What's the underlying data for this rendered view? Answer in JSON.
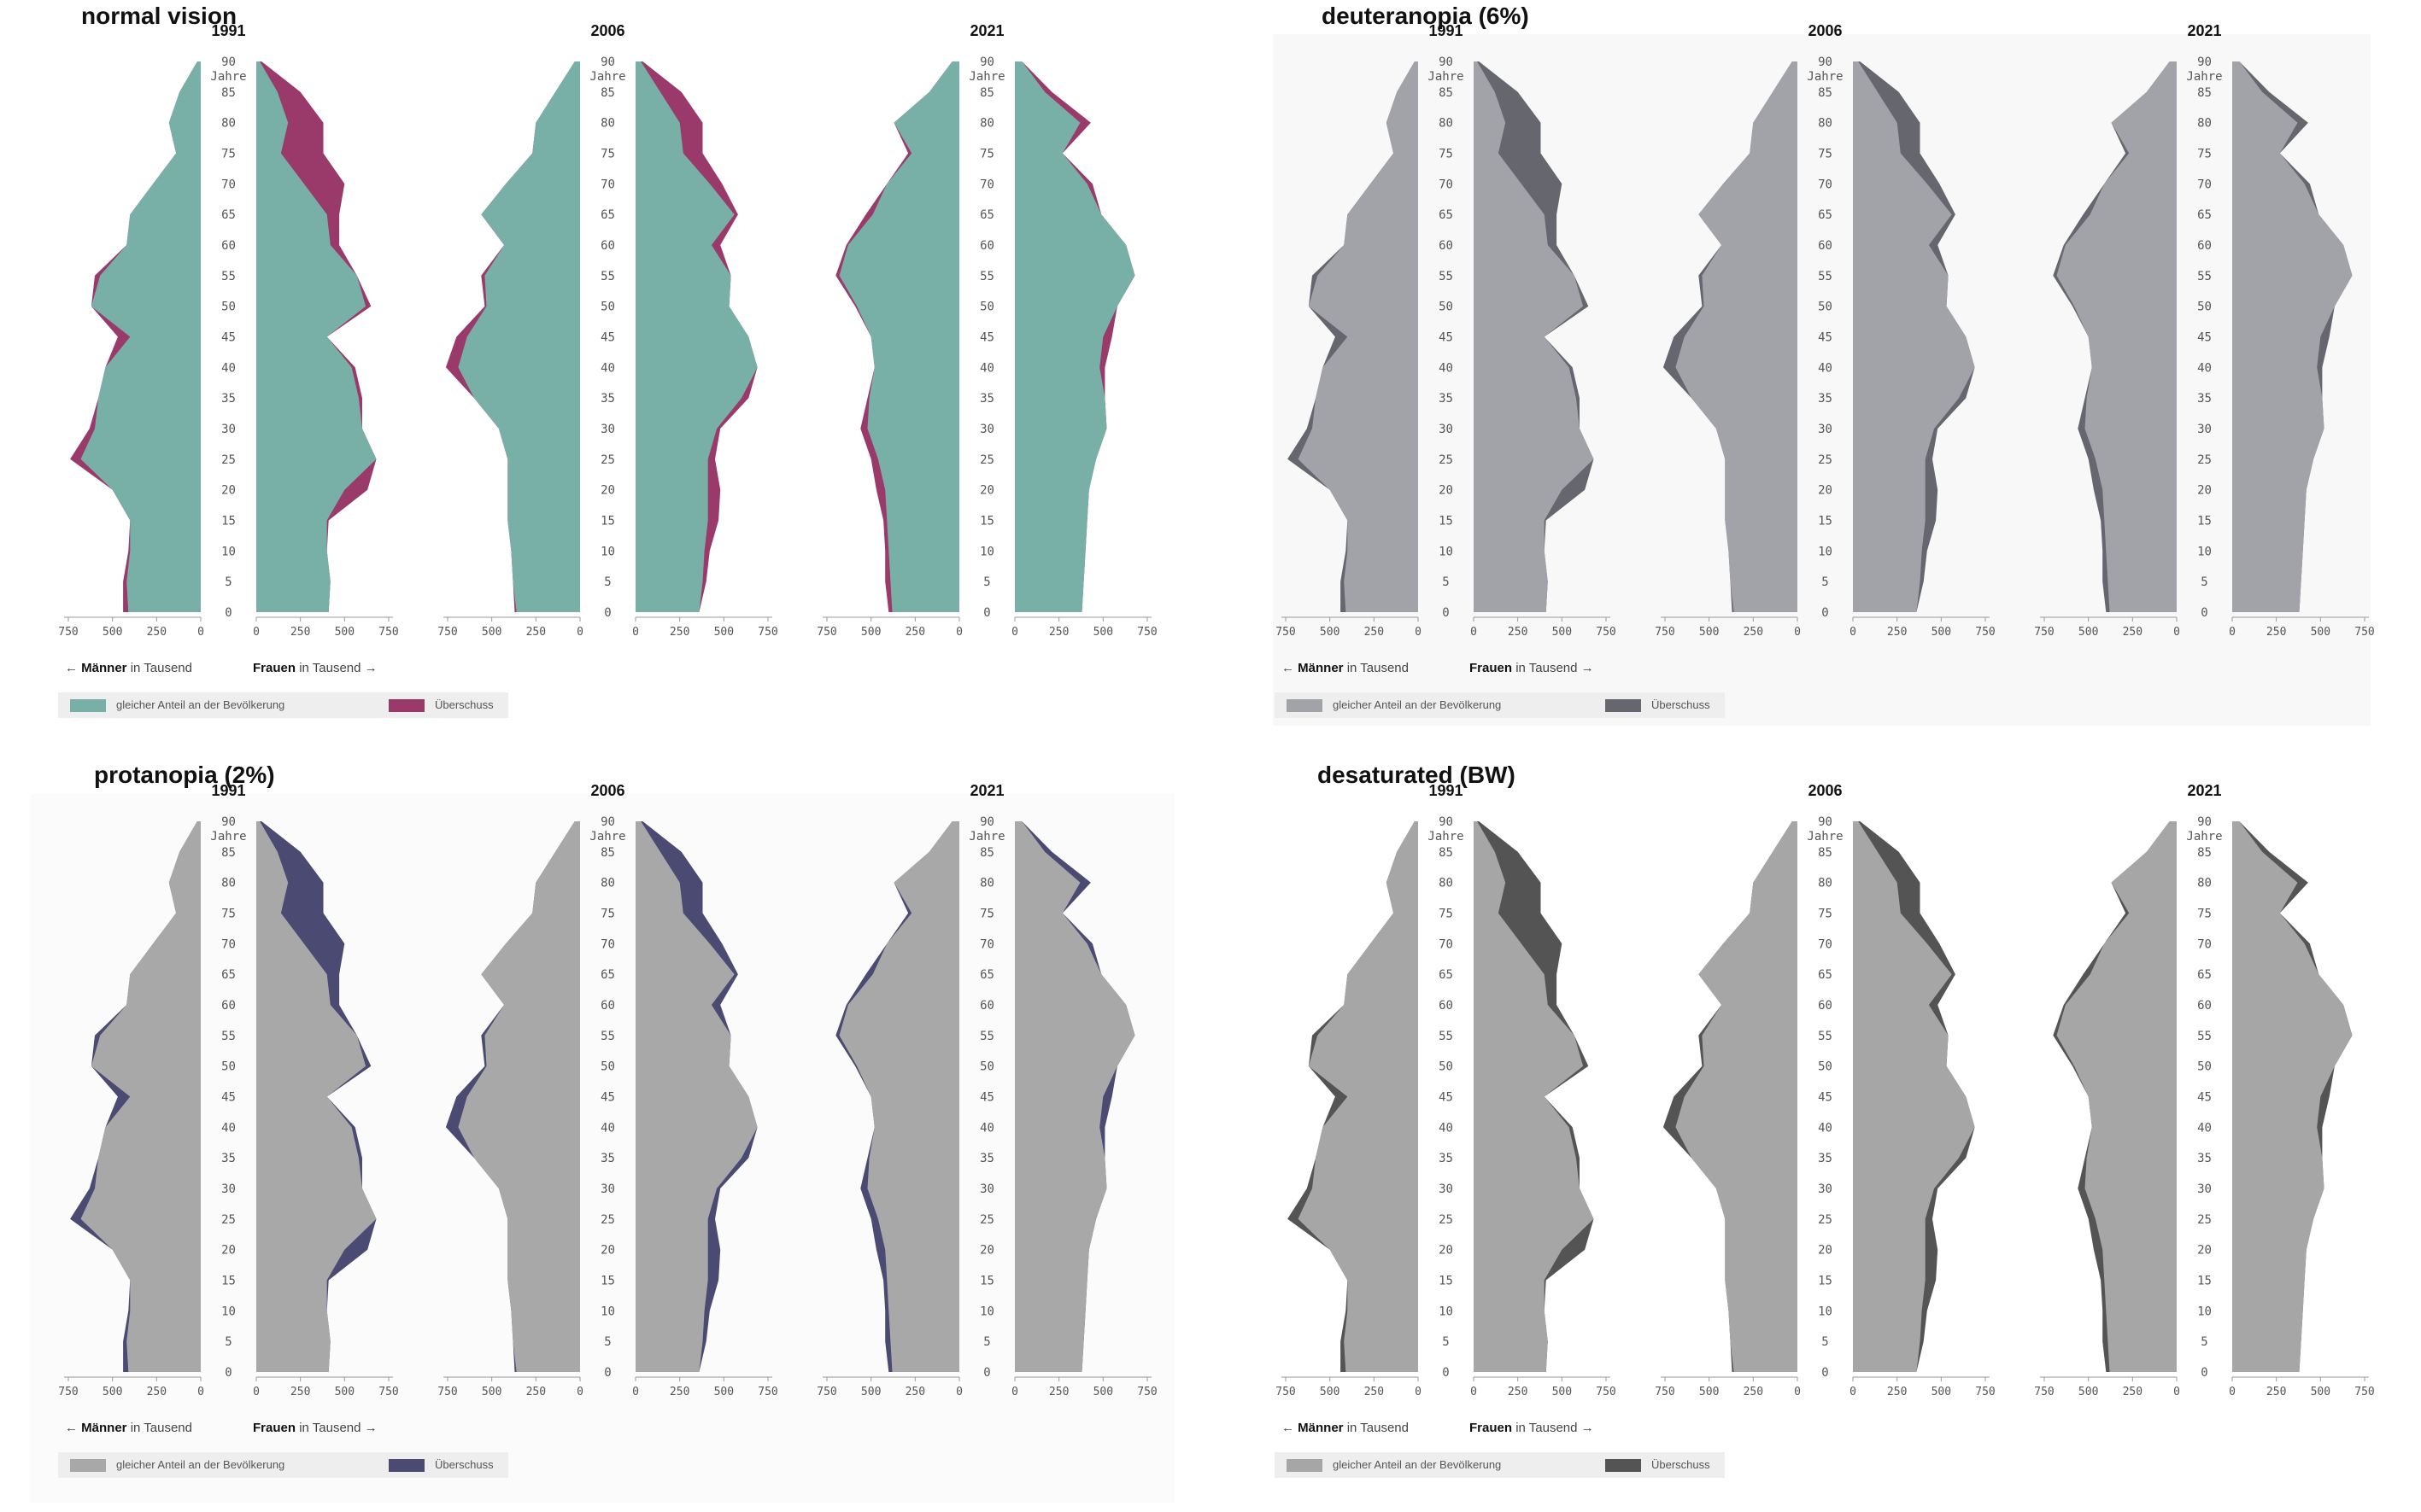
{
  "axis_units": {
    "men": "Männer",
    "women": "Frauen",
    "in": "in",
    "unit": "Tausend",
    "age_unit": "Jahre",
    "arrow_left": "←",
    "arrow_right": "→"
  },
  "legend": {
    "base_label": "gleicher Anteil an der Bevölkerung",
    "excess_label": "Überschuss"
  },
  "panels": [
    {
      "title": "normal vision",
      "colors": {
        "base": "#78b0a8",
        "excess": "#993a6b",
        "background": "#ffffff"
      }
    },
    {
      "title": "deuteranopia (6%)",
      "colors": {
        "base": "#a2a2a9",
        "excess": "#66666f",
        "background": "#f8f8f8"
      }
    },
    {
      "title": "protanopia (2%)",
      "colors": {
        "base": "#a8a8a8",
        "excess": "#4a4a72",
        "background": "#fbfbfb"
      }
    },
    {
      "title": "desaturated (BW)",
      "colors": {
        "base": "#a6a6a6",
        "excess": "#545454",
        "background": "#ffffff"
      }
    }
  ],
  "chart_data": {
    "type": "area",
    "ages": [
      0,
      5,
      10,
      15,
      20,
      25,
      30,
      35,
      40,
      45,
      50,
      55,
      60,
      65,
      70,
      75,
      80,
      85,
      90
    ],
    "x_ticks": [
      750,
      500,
      250,
      0
    ],
    "x_range": [
      0,
      750
    ],
    "y_ticks": [
      0,
      5,
      10,
      15,
      20,
      25,
      30,
      35,
      40,
      45,
      50,
      55,
      60,
      65,
      70,
      75,
      80,
      85,
      90
    ],
    "xlabel_left": "Männer in Tausend",
    "xlabel_right": "Frauen in Tausend",
    "years": [
      {
        "year": "1991",
        "men": [
          440,
          440,
          410,
          400,
          500,
          740,
          630,
          580,
          540,
          470,
          620,
          600,
          420,
          400,
          270,
          140,
          180,
          120,
          20
        ],
        "women": [
          410,
          420,
          400,
          410,
          630,
          680,
          600,
          600,
          560,
          400,
          650,
          570,
          470,
          470,
          500,
          380,
          380,
          250,
          30
        ]
      },
      {
        "year": "2006",
        "men": [
          370,
          380,
          390,
          410,
          410,
          410,
          460,
          600,
          760,
          700,
          540,
          560,
          430,
          560,
          420,
          270,
          250,
          140,
          30
        ],
        "women": [
          360,
          400,
          420,
          470,
          480,
          450,
          480,
          640,
          690,
          640,
          530,
          540,
          480,
          580,
          490,
          380,
          380,
          260,
          40
        ]
      },
      {
        "year": "2021",
        "men": [
          400,
          420,
          420,
          430,
          470,
          500,
          560,
          520,
          480,
          500,
          590,
          700,
          640,
          530,
          410,
          290,
          370,
          170,
          40
        ],
        "women": [
          380,
          390,
          400,
          410,
          420,
          460,
          520,
          510,
          510,
          550,
          580,
          680,
          630,
          490,
          440,
          270,
          430,
          210,
          40
        ]
      }
    ]
  }
}
